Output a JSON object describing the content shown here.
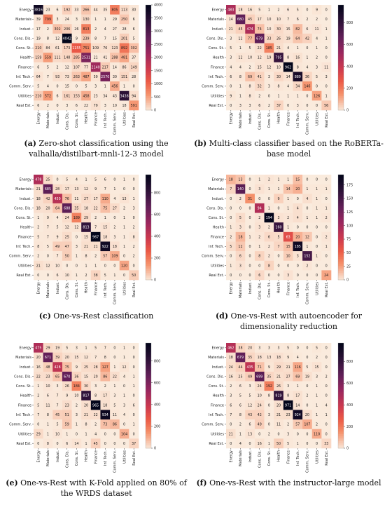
{
  "chart_data": [
    {
      "type": "heatmap",
      "panel_id": "a",
      "caption_label": "(a)",
      "caption_text": "Zero-shot classification using the valhalla/distilbart-mnli-12-3 model",
      "categories": [
        "Energy",
        "Materials",
        "Indust.",
        "Cons. Dis.",
        "Cons. St.",
        "Health",
        "Finance",
        "Inf. Tech.",
        "Comm. Serv.",
        "Utilities",
        "Real Est."
      ],
      "colorbar_ticks": [
        0,
        500,
        1000,
        1500,
        2000,
        2500,
        3000,
        3500,
        4000
      ],
      "vmax": 4000,
      "matrix": [
        [
          3816,
          23,
          6,
          192,
          33,
          266,
          44,
          35,
          805,
          113,
          30
        ],
        [
          39,
          799,
          3,
          24,
          3,
          130,
          1,
          1,
          29,
          250,
          6
        ],
        [
          17,
          2,
          302,
          206,
          26,
          813,
          2,
          4,
          27,
          28,
          6
        ],
        [
          19,
          8,
          12,
          4042,
          9,
          239,
          8,
          7,
          15,
          201,
          5
        ],
        [
          210,
          84,
          61,
          173,
          1155,
          751,
          109,
          76,
          123,
          892,
          302
        ],
        [
          159,
          559,
          111,
          148,
          285,
          2531,
          21,
          41,
          288,
          481,
          37
        ],
        [
          6,
          5,
          2,
          12,
          107,
          77,
          2140,
          217,
          14,
          86,
          149
        ],
        [
          64,
          7,
          93,
          73,
          263,
          487,
          59,
          2570,
          30,
          151,
          28
        ],
        [
          5,
          4,
          0,
          15,
          0,
          5,
          3,
          1,
          456,
          1,
          0
        ],
        [
          210,
          572,
          6,
          161,
          153,
          458,
          23,
          34,
          43,
          3438,
          94
        ],
        [
          6,
          2,
          0,
          3,
          6,
          22,
          79,
          3,
          10,
          18,
          591
        ]
      ]
    },
    {
      "type": "heatmap",
      "panel_id": "b",
      "caption_label": "(b)",
      "caption_text": "Multi-class classifier based on the RoBERTa-base model",
      "categories": [
        "Energy",
        "Materials",
        "Indust.",
        "Cons. Dis.",
        "Cons. St.",
        "Health",
        "Finance",
        "Inf. Tech.",
        "Comm. Serv.",
        "Utilities",
        "Real Est."
      ],
      "colorbar_ticks": [
        0,
        200,
        400,
        600,
        800
      ],
      "vmax": 962,
      "matrix": [
        [
          483,
          18,
          16,
          5,
          1,
          2,
          6,
          5,
          0,
          9,
          0
        ],
        [
          14,
          680,
          45,
          17,
          10,
          10,
          7,
          6,
          2,
          2,
          0
        ],
        [
          21,
          45,
          474,
          74,
          10,
          30,
          15,
          82,
          6,
          11,
          1
        ],
        [
          3,
          12,
          77,
          679,
          33,
          26,
          19,
          64,
          42,
          4,
          1
        ],
        [
          5,
          1,
          5,
          22,
          185,
          21,
          4,
          1,
          0,
          1,
          0
        ],
        [
          3,
          12,
          10,
          12,
          19,
          795,
          8,
          16,
          1,
          2,
          0
        ],
        [
          4,
          4,
          2,
          15,
          12,
          10,
          962,
          8,
          4,
          3,
          11
        ],
        [
          6,
          8,
          69,
          41,
          3,
          30,
          14,
          889,
          36,
          5,
          3
        ],
        [
          0,
          1,
          8,
          32,
          3,
          8,
          4,
          34,
          146,
          0,
          0
        ],
        [
          9,
          1,
          8,
          2,
          0,
          1,
          1,
          1,
          0,
          126,
          1
        ],
        [
          0,
          3,
          3,
          6,
          2,
          37,
          0,
          3,
          0,
          0,
          56
        ]
      ]
    },
    {
      "type": "heatmap",
      "panel_id": "c",
      "caption_label": "(c)",
      "caption_text": "One-vs-Rest classification",
      "categories": [
        "Energy",
        "Materials",
        "Indust.",
        "Cons. Dis.",
        "Cons. St.",
        "Health",
        "Finance",
        "Inf. Tech.",
        "Comm. Serv.",
        "Utilities",
        "Real Est."
      ],
      "colorbar_ticks": [
        0,
        200,
        400,
        600,
        800
      ],
      "vmax": 967,
      "matrix": [
        [
          478,
          25,
          0,
          5,
          4,
          1,
          5,
          6,
          0,
          1,
          0
        ],
        [
          21,
          685,
          28,
          17,
          13,
          12,
          9,
          7,
          1,
          0,
          0
        ],
        [
          18,
          42,
          450,
          76,
          11,
          27,
          17,
          110,
          4,
          13,
          1
        ],
        [
          18,
          20,
          64,
          688,
          35,
          18,
          22,
          75,
          27,
          2,
          3
        ],
        [
          1,
          9,
          4,
          24,
          189,
          29,
          2,
          1,
          0,
          1,
          0
        ],
        [
          2,
          7,
          5,
          12,
          12,
          813,
          7,
          15,
          2,
          1,
          2
        ],
        [
          5,
          7,
          9,
          25,
          0,
          15,
          967,
          18,
          3,
          1,
          8
        ],
        [
          8,
          5,
          49,
          47,
          3,
          21,
          21,
          922,
          18,
          1,
          2
        ],
        [
          2,
          0,
          7,
          50,
          1,
          8,
          2,
          57,
          109,
          0,
          2
        ],
        [
          21,
          12,
          10,
          0,
          0,
          1,
          1,
          0,
          0,
          120,
          0
        ],
        [
          0,
          0,
          6,
          10,
          1,
          2,
          38,
          5,
          1,
          0,
          50
        ]
      ]
    },
    {
      "type": "heatmap",
      "panel_id": "d",
      "caption_label": "(d)",
      "caption_text": "One-vs-Rest with autoencoder for dimensionality reduction",
      "categories": [
        "Energy",
        "Materials",
        "Indust.",
        "Cons. Dis.",
        "Cons. St.",
        "Health",
        "Finance",
        "Inf. Tech.",
        "Comm. Serv.",
        "Utilities",
        "Real Est."
      ],
      "colorbar_ticks": [
        0,
        25,
        50,
        75,
        100,
        125,
        150,
        175
      ],
      "vmax": 194,
      "matrix": [
        [
          18,
          13,
          0,
          1,
          2,
          1,
          1,
          15,
          0,
          0,
          0
        ],
        [
          7,
          140,
          0,
          3,
          1,
          1,
          14,
          20,
          1,
          1,
          1
        ],
        [
          0,
          2,
          31,
          0,
          0,
          9,
          1,
          0,
          4,
          1,
          0
        ],
        [
          0,
          0,
          0,
          94,
          1,
          0,
          1,
          4,
          0,
          1,
          1
        ],
        [
          0,
          5,
          0,
          2,
          194,
          3,
          2,
          4,
          1,
          1,
          2
        ],
        [
          1,
          3,
          0,
          3,
          2,
          160,
          1,
          0,
          0,
          0,
          0
        ],
        [
          2,
          18,
          1,
          2,
          6,
          5,
          63,
          20,
          12,
          0,
          2
        ],
        [
          5,
          12,
          0,
          1,
          2,
          7,
          15,
          185,
          1,
          0,
          1
        ],
        [
          0,
          6,
          0,
          8,
          2,
          0,
          10,
          3,
          152,
          1,
          0
        ],
        [
          1,
          3,
          0,
          0,
          8,
          0,
          0,
          0,
          2,
          0,
          0
        ],
        [
          0,
          0,
          0,
          6,
          0,
          0,
          3,
          0,
          0,
          0,
          24
        ]
      ]
    },
    {
      "type": "heatmap",
      "panel_id": "e",
      "caption_label": "(e)",
      "caption_text": "One-vs-Rest with K-Fold applied on 80% of the WRDS dataset",
      "categories": [
        "Energy",
        "Materials",
        "Indust.",
        "Cons. Dis.",
        "Cons. St.",
        "Health",
        "Finance",
        "Inf. Tech.",
        "Comm. Serv.",
        "Utilities",
        "Real Est."
      ],
      "colorbar_ticks": [
        0,
        200,
        400,
        600,
        800
      ],
      "vmax": 965,
      "matrix": [
        [
          475,
          29,
          19,
          5,
          3,
          1,
          5,
          7,
          0,
          1,
          0
        ],
        [
          20,
          671,
          39,
          20,
          15,
          12,
          7,
          8,
          0,
          1,
          0
        ],
        [
          16,
          48,
          428,
          75,
          9,
          25,
          28,
          127,
          1,
          12,
          0
        ],
        [
          22,
          23,
          65,
          670,
          36,
          15,
          20,
          86,
          22,
          4,
          1
        ],
        [
          1,
          10,
          3,
          26,
          184,
          30,
          3,
          2,
          1,
          0,
          1
        ],
        [
          2,
          6,
          7,
          9,
          10,
          817,
          8,
          17,
          3,
          1,
          0
        ],
        [
          5,
          11,
          7,
          23,
          2,
          20,
          965,
          18,
          5,
          3,
          6
        ],
        [
          7,
          8,
          45,
          51,
          3,
          21,
          22,
          934,
          11,
          4,
          0
        ],
        [
          0,
          1,
          5,
          59,
          1,
          8,
          2,
          73,
          86,
          0,
          1
        ],
        [
          29,
          1,
          10,
          1,
          0,
          1,
          4,
          0,
          0,
          104,
          0
        ],
        [
          0,
          8,
          0,
          6,
          14,
          1,
          45,
          0,
          0,
          0,
          37
        ]
      ]
    },
    {
      "type": "heatmap",
      "panel_id": "f",
      "caption_label": "(f)",
      "caption_text": "One-vs-Rest with the instructor-large model",
      "categories": [
        "Energy",
        "Materials",
        "Indust.",
        "Cons. Dis.",
        "Cons. St.",
        "Health",
        "Finance",
        "Inf. Tech.",
        "Comm. Serv.",
        "Utilities",
        "Real Est."
      ],
      "colorbar_ticks": [
        0,
        200,
        400,
        600,
        800
      ],
      "vmax": 971,
      "matrix": [
        [
          462,
          38,
          20,
          3,
          3,
          3,
          5,
          0,
          0,
          5,
          0
        ],
        [
          18,
          679,
          35,
          18,
          13,
          18,
          9,
          4,
          0,
          2,
          0
        ],
        [
          24,
          44,
          435,
          71,
          9,
          29,
          21,
          116,
          5,
          15,
          0
        ],
        [
          16,
          25,
          49,
          699,
          35,
          21,
          27,
          69,
          19,
          3,
          2
        ],
        [
          2,
          6,
          3,
          24,
          192,
          26,
          3,
          1,
          0,
          1,
          0
        ],
        [
          3,
          5,
          5,
          10,
          8,
          819,
          8,
          17,
          2,
          1,
          0
        ],
        [
          6,
          6,
          12,
          24,
          0,
          20,
          971,
          14,
          0,
          1,
          4
        ],
        [
          7,
          8,
          43,
          42,
          3,
          21,
          23,
          924,
          20,
          1,
          1
        ],
        [
          0,
          2,
          6,
          49,
          0,
          11,
          2,
          57,
          107,
          2,
          0
        ],
        [
          21,
          1,
          13,
          0,
          2,
          0,
          3,
          0,
          0,
          110,
          0
        ],
        [
          0,
          4,
          0,
          16,
          1,
          50,
          5,
          1,
          0,
          0,
          33
        ]
      ]
    }
  ]
}
